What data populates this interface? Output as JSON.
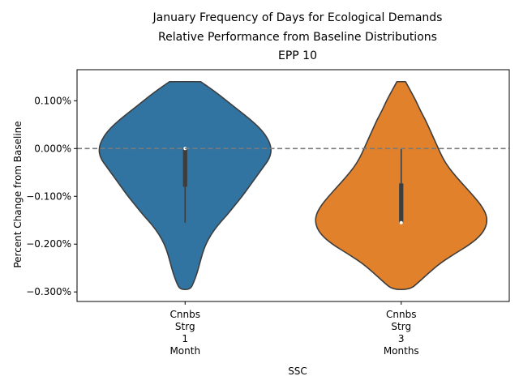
{
  "chart_data": {
    "type": "violin",
    "title_lines": [
      "January Frequency of Days for Ecological Demands",
      "Relative Performance from Baseline Distributions",
      "EPP 10"
    ],
    "xlabel": "SSC",
    "ylabel": "Percent Change from Baseline",
    "ylim": [
      -0.32,
      0.165
    ],
    "y_ticks": [
      0.1,
      0.0,
      -0.1,
      -0.2,
      -0.3
    ],
    "y_tick_labels": [
      "0.100%",
      "0.000%",
      "−0.100%",
      "−0.200%",
      "−0.300%"
    ],
    "reference_line": 0.0,
    "grid": false,
    "categories": [
      {
        "label_lines": [
          "Cnnbs",
          "Strg",
          "1",
          "Month"
        ],
        "color": "#3274a1",
        "median": 0.0,
        "q1": -0.08,
        "q3": 0.0,
        "whisker_low": -0.155,
        "whisker_high": 0.0,
        "density_profile": [
          [
            0.14,
            0.18
          ],
          [
            0.12,
            0.34
          ],
          [
            0.1,
            0.48
          ],
          [
            0.08,
            0.62
          ],
          [
            0.06,
            0.76
          ],
          [
            0.04,
            0.88
          ],
          [
            0.02,
            0.96
          ],
          [
            0.0,
            1.0
          ],
          [
            -0.02,
            0.98
          ],
          [
            -0.04,
            0.9
          ],
          [
            -0.06,
            0.82
          ],
          [
            -0.08,
            0.74
          ],
          [
            -0.1,
            0.66
          ],
          [
            -0.12,
            0.57
          ],
          [
            -0.14,
            0.48
          ],
          [
            -0.16,
            0.38
          ],
          [
            -0.18,
            0.3
          ],
          [
            -0.2,
            0.24
          ],
          [
            -0.22,
            0.2
          ],
          [
            -0.24,
            0.17
          ],
          [
            -0.26,
            0.14
          ],
          [
            -0.28,
            0.1
          ],
          [
            -0.295,
            0.06
          ]
        ]
      },
      {
        "label_lines": [
          "Cnnbs",
          "Strg",
          "3",
          "Months"
        ],
        "color": "#e1812c",
        "median": -0.155,
        "q1": -0.155,
        "q3": -0.073,
        "whisker_low": -0.155,
        "whisker_high": 0.0,
        "density_profile": [
          [
            0.14,
            0.05
          ],
          [
            0.12,
            0.11
          ],
          [
            0.1,
            0.17
          ],
          [
            0.08,
            0.22
          ],
          [
            0.06,
            0.28
          ],
          [
            0.04,
            0.33
          ],
          [
            0.02,
            0.38
          ],
          [
            0.0,
            0.43
          ],
          [
            -0.02,
            0.48
          ],
          [
            -0.04,
            0.55
          ],
          [
            -0.06,
            0.64
          ],
          [
            -0.08,
            0.74
          ],
          [
            -0.1,
            0.84
          ],
          [
            -0.12,
            0.93
          ],
          [
            -0.14,
            0.99
          ],
          [
            -0.16,
            0.99
          ],
          [
            -0.18,
            0.93
          ],
          [
            -0.2,
            0.8
          ],
          [
            -0.22,
            0.62
          ],
          [
            -0.24,
            0.45
          ],
          [
            -0.26,
            0.32
          ],
          [
            -0.28,
            0.2
          ],
          [
            -0.295,
            0.1
          ]
        ]
      }
    ]
  }
}
